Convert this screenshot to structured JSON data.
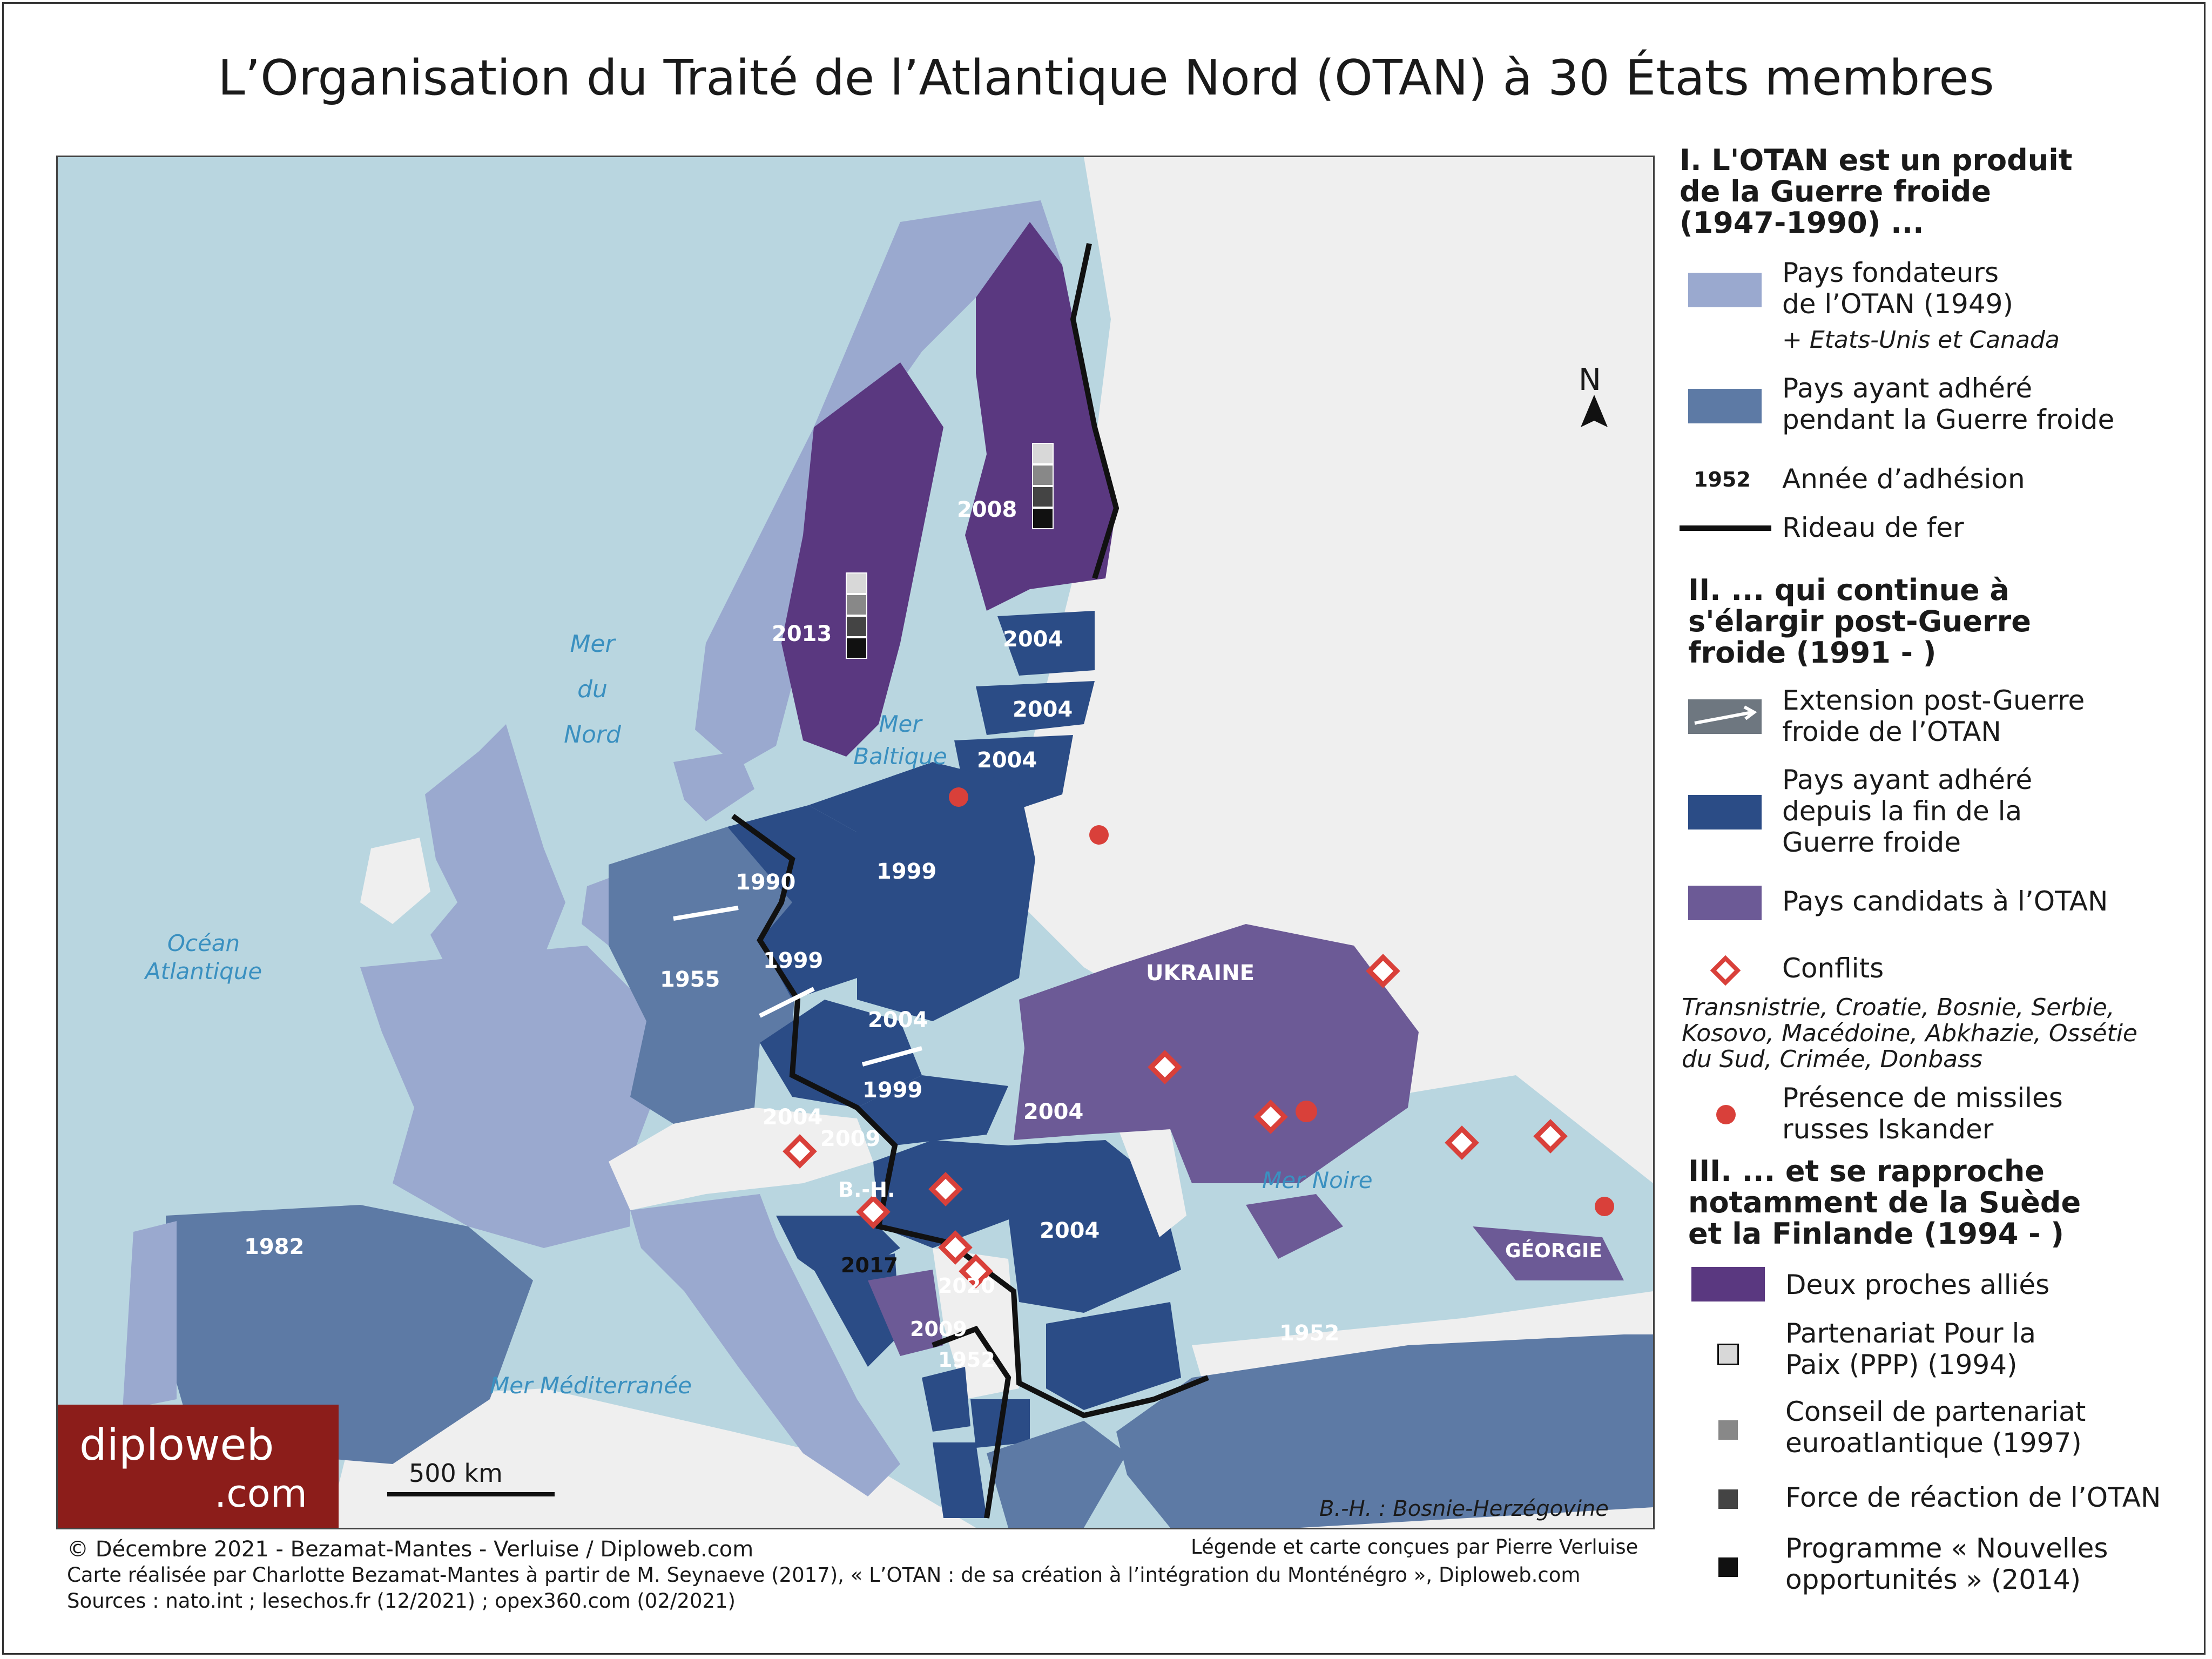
{
  "title": "L’Organisation du Traité de l’Atlantique Nord (OTAN) à 30 États membres",
  "map": {
    "seas": {
      "mer_du_nord": [
        "Mer",
        "du",
        "Nord"
      ],
      "ocean_atlantique": [
        "Océan",
        "Atlantique"
      ],
      "mer_baltique": [
        "Mer",
        "Baltique"
      ],
      "mer_noire": "Mer Noire",
      "mer_mediterranee": "Mer Méditerranée"
    },
    "north": "N",
    "country_labels": {
      "ukraine": "UKRAINE",
      "georgie": "GÉORGIE",
      "bh": "B.-H."
    },
    "years": {
      "sweden": "2013",
      "finland": "2008",
      "estonia": "2004",
      "latvia": "2004",
      "lithuania": "2004",
      "east_germany": "1990",
      "poland": "1999",
      "germany": "1955",
      "czechia": "1999",
      "slovakia": "2004",
      "hungary": "1999",
      "slovenia": "2004",
      "croatia": "2009",
      "romania": "2004",
      "bulgaria": "2004",
      "montenegro": "2017",
      "macedonia": "2020",
      "albania": "2009",
      "greece": "1952",
      "turkey": "1952",
      "spain": "1982"
    },
    "scale": "500 km",
    "bh_note": "B.-H. : Bosnie-Herzégovine",
    "logo_text": [
      "diploweb",
      ".com"
    ]
  },
  "colors": {
    "sea": "#b9d6e0",
    "land": "#efefef",
    "founders": "#9aa9cf",
    "cold_war": "#5d7aa5",
    "post_cold_war": "#2b4c86",
    "candidates": "#6c5a96",
    "allies": "#5a3880",
    "conflict": "#d9403a",
    "iron_curtain": "#111111"
  },
  "legend": {
    "s1_title": [
      "I. L'OTAN est un produit",
      "de la Guerre froide",
      "(1947-1990) ..."
    ],
    "founders": [
      "Pays fondateurs",
      "de l’OTAN (1949)"
    ],
    "founders_note": "+ Etats-Unis et Canada",
    "cold_war": [
      "Pays ayant adhéré",
      "pendant la Guerre froide"
    ],
    "year_sample": "1952",
    "year_label": "Année d’adhésion",
    "curtain_label": "Rideau de fer",
    "s2_title": [
      "II. ... qui continue à",
      "s'élargir post-Guerre",
      "froide (1991 - )"
    ],
    "extension": [
      "Extension post-Guerre",
      "froide de l’OTAN"
    ],
    "post_cold_war": [
      "Pays ayant adhéré",
      "depuis la fin de la",
      "Guerre froide"
    ],
    "candidates": "Pays candidats à l’OTAN",
    "conflicts": "Conflits",
    "conflicts_list": [
      "Transnistrie, Croatie, Bosnie, Serbie,",
      "Kosovo, Macédoine, Abkhazie, Ossétie",
      "du Sud, Crimée, Donbass"
    ],
    "iskander": [
      "Présence de missiles",
      "russes Iskander"
    ],
    "s3_title": [
      "III. ... et se rapproche",
      "notamment de la Suède",
      "et la Finlande (1994 - )"
    ],
    "allies": "Deux proches alliés",
    "ppp": [
      "Partenariat Pour la",
      "Paix (PPP) (1994)"
    ],
    "council": [
      "Conseil de partenariat",
      "euroatlantique (1997)"
    ],
    "force": "Force de réaction de l’OTAN",
    "programme": [
      "Programme « Nouvelles",
      "opportunités » (2014)"
    ]
  },
  "footer": {
    "credit": "Légende et carte conçues par Pierre Verluise",
    "copyright": "© Décembre 2021 - Bezamat-Mantes - Verluise / Diploweb.com",
    "source1": "Carte réalisée par Charlotte Bezamat-Mantes à partir de M. Seynaeve (2017), « L’OTAN : de sa création à l’intégration du Monténégro », Diploweb.com",
    "source2": "Sources : nato.int ; lesechos.fr (12/2021) ; opex360.com (02/2021)"
  }
}
